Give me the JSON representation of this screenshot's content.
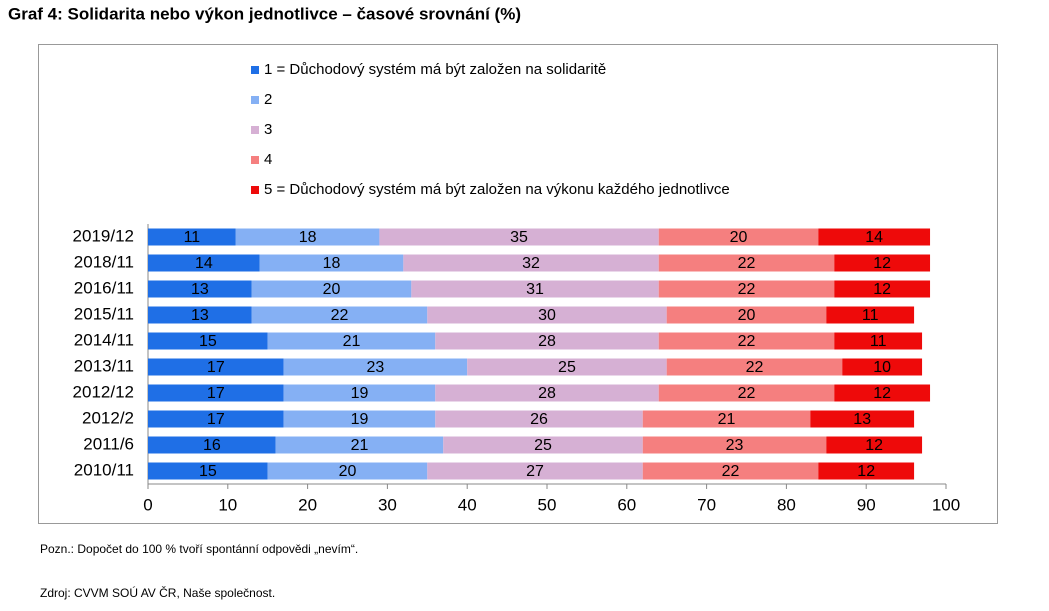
{
  "chart_data": {
    "type": "stacked_barh",
    "title": "Graf 4: Solidarita nebo výkon jednotlivce – časové srovnání (%)",
    "categories": [
      "2019/12",
      "2018/11",
      "2016/11",
      "2015/11",
      "2014/11",
      "2013/11",
      "2012/12",
      "2012/2",
      "2011/6",
      "2010/11"
    ],
    "series": [
      {
        "name": "1 = Důchodový systém má být založen na solidaritě",
        "color": "#1f6fe6",
        "values": [
          11,
          14,
          13,
          13,
          15,
          17,
          17,
          17,
          16,
          15
        ]
      },
      {
        "name": "2",
        "color": "#85b0f4",
        "values": [
          18,
          18,
          20,
          22,
          21,
          23,
          19,
          19,
          21,
          20
        ]
      },
      {
        "name": "3",
        "color": "#d6b0d4",
        "values": [
          35,
          32,
          31,
          30,
          28,
          25,
          28,
          26,
          25,
          27
        ]
      },
      {
        "name": "4",
        "color": "#f57f7f",
        "values": [
          20,
          22,
          22,
          20,
          22,
          22,
          22,
          21,
          23,
          22
        ]
      },
      {
        "name": "5 = Důchodový systém má být založen na výkonu každého jednotlivce",
        "color": "#ee0a0a",
        "values": [
          14,
          12,
          12,
          11,
          11,
          10,
          12,
          13,
          12,
          12
        ]
      }
    ],
    "xlim": [
      0,
      100
    ],
    "xticks": [
      0,
      10,
      20,
      30,
      40,
      50,
      60,
      70,
      80,
      90,
      100
    ],
    "grid": false,
    "legend": "top",
    "note": "Pozn.: Dopočet do 100 % tvoří spontánní odpovědi „nevím“.",
    "source": "Zdroj: CVVM SOÚ AV ČR, Naše společnost."
  }
}
